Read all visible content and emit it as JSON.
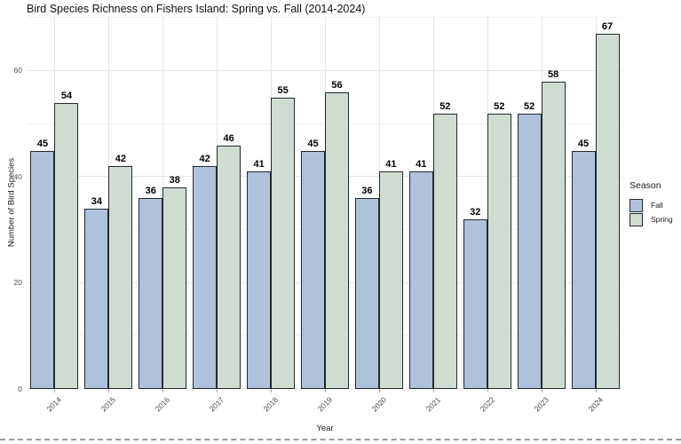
{
  "chart_data": {
    "type": "bar",
    "title": "Bird Species Richness on Fishers Island: Spring vs. Fall (2014-2024)",
    "xlabel": "Year",
    "ylabel": "Number of Bird Species",
    "categories": [
      "2014",
      "2015",
      "2016",
      "2017",
      "2018",
      "2019",
      "2020",
      "2021",
      "2022",
      "2023",
      "2024"
    ],
    "series": [
      {
        "name": "Fall",
        "color": "#b0c1db",
        "values": [
          45,
          34,
          36,
          42,
          41,
          45,
          36,
          41,
          32,
          52,
          45
        ]
      },
      {
        "name": "Spring",
        "color": "#d0dcd1",
        "values": [
          54,
          42,
          38,
          46,
          55,
          56,
          41,
          52,
          52,
          58,
          67
        ]
      }
    ],
    "bar_value_labels_shown": true,
    "yticks": [
      0,
      20,
      40,
      60
    ],
    "yticks_minor": [
      10,
      30,
      50,
      70
    ],
    "ylim": [
      0,
      70
    ],
    "grid": "on",
    "legend": {
      "title": "Season",
      "position": "right",
      "entries": [
        "Fall",
        "Spring"
      ]
    },
    "colors": {
      "fall_fill": "#b0c1db",
      "spring_fill": "#d0dcd1",
      "bar_outline": "#24292d",
      "grid_major": "#e6e6e6",
      "grid_minor": "#f2f2f2",
      "tick_text": "#4d4d4d"
    }
  }
}
